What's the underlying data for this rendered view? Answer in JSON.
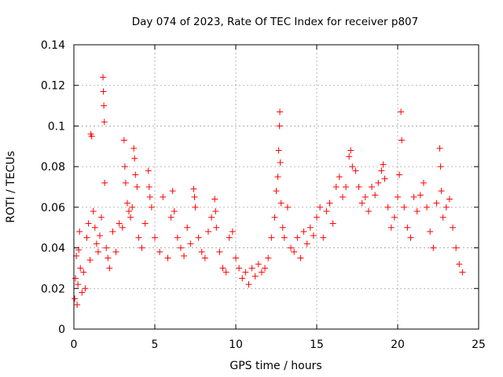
{
  "chart_data": {
    "type": "scatter",
    "title": "Day 074 of 2023, Rate Of TEC Index for receiver p807",
    "xlabel": "GPS time / hours",
    "ylabel": "ROTI / TECUs",
    "xlim": [
      0,
      25
    ],
    "ylim": [
      0,
      0.14
    ],
    "x_ticks": [
      0,
      5,
      10,
      15,
      20,
      25
    ],
    "x_tick_labels": [
      "0",
      "5",
      "10",
      "15",
      "20",
      "25"
    ],
    "y_ticks": [
      0,
      0.02,
      0.04,
      0.06,
      0.08,
      0.1,
      0.12,
      0.14
    ],
    "y_tick_labels": [
      "0",
      "0.02",
      "0.04",
      "0.06",
      "0.08",
      "0.1",
      "0.12",
      "0.14"
    ],
    "grid": true,
    "marker": "+",
    "marker_color": "#ff0000",
    "series": [
      {
        "name": "ROTI",
        "points": [
          [
            0.05,
            0.015
          ],
          [
            0.1,
            0.025
          ],
          [
            0.15,
            0.036
          ],
          [
            0.2,
            0.012
          ],
          [
            0.25,
            0.022
          ],
          [
            0.3,
            0.039
          ],
          [
            0.35,
            0.048
          ],
          [
            0.4,
            0.03
          ],
          [
            0.5,
            0.018
          ],
          [
            0.6,
            0.028
          ],
          [
            0.7,
            0.02
          ],
          [
            0.8,
            0.045
          ],
          [
            0.9,
            0.052
          ],
          [
            1.0,
            0.034
          ],
          [
            1.05,
            0.096
          ],
          [
            1.1,
            0.095
          ],
          [
            1.2,
            0.058
          ],
          [
            1.3,
            0.05
          ],
          [
            1.4,
            0.042
          ],
          [
            1.5,
            0.038
          ],
          [
            1.6,
            0.046
          ],
          [
            1.7,
            0.055
          ],
          [
            1.8,
            0.124
          ],
          [
            1.82,
            0.117
          ],
          [
            1.85,
            0.11
          ],
          [
            1.88,
            0.102
          ],
          [
            1.9,
            0.072
          ],
          [
            2.0,
            0.04
          ],
          [
            2.1,
            0.035
          ],
          [
            2.2,
            0.03
          ],
          [
            2.4,
            0.048
          ],
          [
            2.6,
            0.038
          ],
          [
            2.8,
            0.052
          ],
          [
            3.0,
            0.05
          ],
          [
            3.1,
            0.093
          ],
          [
            3.15,
            0.08
          ],
          [
            3.2,
            0.072
          ],
          [
            3.3,
            0.062
          ],
          [
            3.4,
            0.058
          ],
          [
            3.5,
            0.055
          ],
          [
            3.6,
            0.06
          ],
          [
            3.7,
            0.089
          ],
          [
            3.75,
            0.084
          ],
          [
            3.8,
            0.076
          ],
          [
            3.9,
            0.07
          ],
          [
            4.0,
            0.045
          ],
          [
            4.2,
            0.04
          ],
          [
            4.4,
            0.052
          ],
          [
            4.6,
            0.078
          ],
          [
            4.65,
            0.07
          ],
          [
            4.7,
            0.065
          ],
          [
            4.8,
            0.06
          ],
          [
            5.0,
            0.045
          ],
          [
            5.3,
            0.038
          ],
          [
            5.5,
            0.065
          ],
          [
            5.8,
            0.035
          ],
          [
            6.0,
            0.055
          ],
          [
            6.1,
            0.068
          ],
          [
            6.2,
            0.058
          ],
          [
            6.4,
            0.045
          ],
          [
            6.6,
            0.04
          ],
          [
            6.8,
            0.036
          ],
          [
            7.0,
            0.05
          ],
          [
            7.2,
            0.042
          ],
          [
            7.4,
            0.069
          ],
          [
            7.45,
            0.065
          ],
          [
            7.5,
            0.06
          ],
          [
            7.7,
            0.045
          ],
          [
            7.9,
            0.038
          ],
          [
            8.1,
            0.035
          ],
          [
            8.3,
            0.048
          ],
          [
            8.5,
            0.055
          ],
          [
            8.7,
            0.064
          ],
          [
            8.75,
            0.058
          ],
          [
            8.8,
            0.05
          ],
          [
            9.0,
            0.038
          ],
          [
            9.2,
            0.03
          ],
          [
            9.4,
            0.028
          ],
          [
            9.6,
            0.045
          ],
          [
            9.8,
            0.048
          ],
          [
            10.0,
            0.035
          ],
          [
            10.2,
            0.03
          ],
          [
            10.4,
            0.025
          ],
          [
            10.6,
            0.028
          ],
          [
            10.8,
            0.022
          ],
          [
            11.0,
            0.03
          ],
          [
            11.2,
            0.026
          ],
          [
            11.4,
            0.032
          ],
          [
            11.6,
            0.028
          ],
          [
            11.8,
            0.03
          ],
          [
            12.0,
            0.035
          ],
          [
            12.2,
            0.045
          ],
          [
            12.4,
            0.055
          ],
          [
            12.5,
            0.068
          ],
          [
            12.6,
            0.075
          ],
          [
            12.65,
            0.088
          ],
          [
            12.7,
            0.1
          ],
          [
            12.72,
            0.107
          ],
          [
            12.75,
            0.082
          ],
          [
            12.8,
            0.062
          ],
          [
            12.9,
            0.05
          ],
          [
            13.0,
            0.045
          ],
          [
            13.2,
            0.06
          ],
          [
            13.4,
            0.04
          ],
          [
            13.6,
            0.038
          ],
          [
            13.8,
            0.045
          ],
          [
            14.0,
            0.035
          ],
          [
            14.2,
            0.048
          ],
          [
            14.4,
            0.042
          ],
          [
            14.6,
            0.05
          ],
          [
            14.8,
            0.046
          ],
          [
            15.0,
            0.055
          ],
          [
            15.2,
            0.06
          ],
          [
            15.4,
            0.045
          ],
          [
            15.6,
            0.058
          ],
          [
            15.8,
            0.062
          ],
          [
            16.0,
            0.052
          ],
          [
            16.2,
            0.07
          ],
          [
            16.4,
            0.075
          ],
          [
            16.6,
            0.065
          ],
          [
            16.8,
            0.07
          ],
          [
            17.0,
            0.085
          ],
          [
            17.1,
            0.088
          ],
          [
            17.2,
            0.08
          ],
          [
            17.4,
            0.078
          ],
          [
            17.6,
            0.07
          ],
          [
            17.8,
            0.062
          ],
          [
            18.0,
            0.065
          ],
          [
            18.2,
            0.058
          ],
          [
            18.4,
            0.07
          ],
          [
            18.6,
            0.066
          ],
          [
            18.8,
            0.072
          ],
          [
            19.0,
            0.078
          ],
          [
            19.1,
            0.081
          ],
          [
            19.2,
            0.074
          ],
          [
            19.4,
            0.06
          ],
          [
            19.6,
            0.05
          ],
          [
            19.8,
            0.055
          ],
          [
            20.0,
            0.065
          ],
          [
            20.1,
            0.076
          ],
          [
            20.2,
            0.107
          ],
          [
            20.25,
            0.093
          ],
          [
            20.4,
            0.06
          ],
          [
            20.6,
            0.05
          ],
          [
            20.8,
            0.045
          ],
          [
            21.0,
            0.065
          ],
          [
            21.2,
            0.058
          ],
          [
            21.4,
            0.066
          ],
          [
            21.6,
            0.072
          ],
          [
            21.8,
            0.06
          ],
          [
            22.0,
            0.048
          ],
          [
            22.2,
            0.04
          ],
          [
            22.4,
            0.062
          ],
          [
            22.6,
            0.089
          ],
          [
            22.65,
            0.08
          ],
          [
            22.7,
            0.068
          ],
          [
            22.8,
            0.055
          ],
          [
            23.0,
            0.06
          ],
          [
            23.2,
            0.064
          ],
          [
            23.4,
            0.05
          ],
          [
            23.6,
            0.04
          ],
          [
            23.8,
            0.032
          ],
          [
            24.0,
            0.028
          ]
        ]
      }
    ]
  }
}
